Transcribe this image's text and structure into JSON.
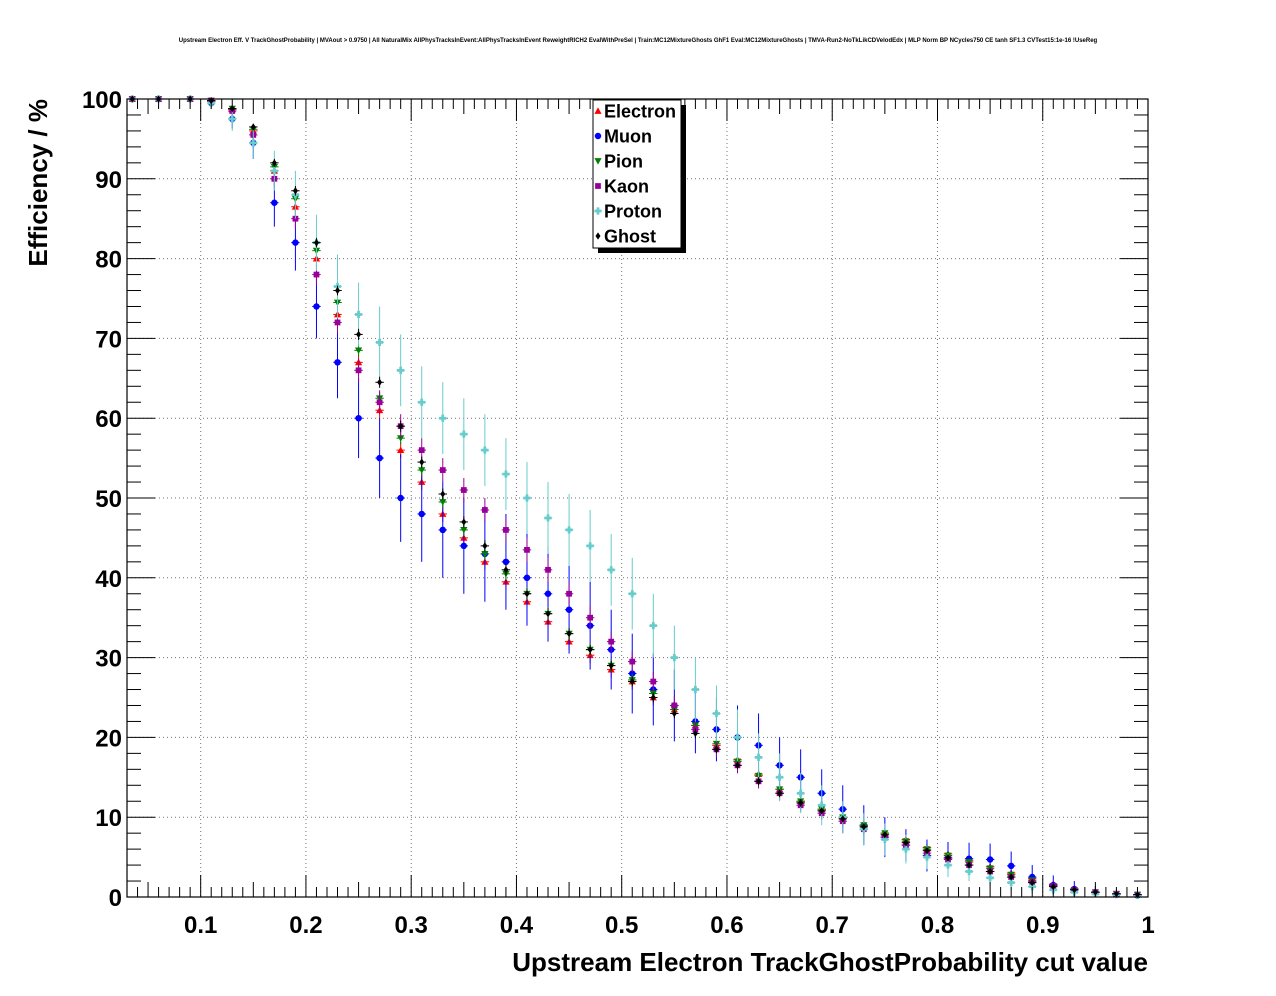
{
  "chart_data": {
    "type": "scatter",
    "title": "Upstream Electron Eff. V TrackGhostProbability | MVAout > 0.9750 | All NaturalMix AllPhysTracksInEvent:AllPhysTracksInEvent ReweightRICH2 EvalWithPreSel | Train:MC12MixtureGhosts GhF1 Eval:MC12MixtureGhosts | TMVA-Run2-NoTkLikCDVelodEdx | MLP Norm BP NCycles750 CE tanh SF1.3 CVTest15:1e-16 !UseReg",
    "xlabel": "Upstream Electron TrackGhostProbability cut value",
    "ylabel": "Efficiency / %",
    "xlim": [
      0.03,
      1.0
    ],
    "ylim": [
      0,
      100
    ],
    "x_ticks": [
      0.1,
      0.2,
      0.3,
      0.4,
      0.5,
      0.6,
      0.7,
      0.8,
      0.9,
      1.0
    ],
    "x_tick_labels": [
      "0.1",
      "0.2",
      "0.3",
      "0.4",
      "0.5",
      "0.6",
      "0.7",
      "0.8",
      "0.9",
      "1"
    ],
    "y_ticks": [
      0,
      10,
      20,
      30,
      40,
      50,
      60,
      70,
      80,
      90,
      100
    ],
    "y_tick_labels": [
      "0",
      "10",
      "20",
      "30",
      "40",
      "50",
      "60",
      "70",
      "80",
      "90",
      "100"
    ],
    "grid": true,
    "legend_position": "top-center",
    "series": [
      {
        "name": "Electron",
        "color": "#ff0000",
        "marker": "triangle-up",
        "x": [
          0.035,
          0.06,
          0.09,
          0.11,
          0.13,
          0.15,
          0.17,
          0.19,
          0.21,
          0.23,
          0.25,
          0.27,
          0.29,
          0.31,
          0.33,
          0.35,
          0.37,
          0.39,
          0.41,
          0.43,
          0.45,
          0.47,
          0.49,
          0.51,
          0.53,
          0.55,
          0.57,
          0.59,
          0.61,
          0.63,
          0.65,
          0.67,
          0.69,
          0.71,
          0.73,
          0.75,
          0.77,
          0.79,
          0.81,
          0.83,
          0.85,
          0.87,
          0.89,
          0.91,
          0.93,
          0.95,
          0.97,
          0.99
        ],
        "y": [
          100,
          100,
          100,
          99.7,
          98.7,
          96,
          91,
          86.5,
          80,
          73,
          67,
          61,
          56,
          52,
          48,
          45,
          42,
          39.5,
          37,
          34.5,
          32,
          30.3,
          28.5,
          27,
          25,
          23.5,
          21.5,
          19,
          17.2,
          15.4,
          13.5,
          12,
          11,
          10,
          9,
          8,
          7.2,
          6.2,
          5.4,
          4.6,
          3.8,
          3,
          2.3,
          1.6,
          1,
          0.6,
          0.4,
          0.3
        ],
        "err": [
          0.1,
          0.1,
          0.1,
          0.3,
          0.5,
          0.7,
          0.8,
          0.9,
          1,
          1,
          1,
          1,
          1,
          1,
          1,
          1,
          1,
          1,
          1,
          1,
          1,
          1,
          1,
          1,
          1,
          0.9,
          0.9,
          0.8,
          0.8,
          0.8,
          0.7,
          0.7,
          0.7,
          0.6,
          0.6,
          0.6,
          0.5,
          0.5,
          0.5,
          0.5,
          0.4,
          0.4,
          0.4,
          0.3,
          0.3,
          0.2,
          0.2,
          0.2
        ]
      },
      {
        "name": "Muon",
        "color": "#0000ff",
        "marker": "circle",
        "x": [
          0.035,
          0.06,
          0.09,
          0.11,
          0.13,
          0.15,
          0.17,
          0.19,
          0.21,
          0.23,
          0.25,
          0.27,
          0.29,
          0.31,
          0.33,
          0.35,
          0.37,
          0.39,
          0.41,
          0.43,
          0.45,
          0.47,
          0.49,
          0.51,
          0.53,
          0.55,
          0.57,
          0.59,
          0.61,
          0.63,
          0.65,
          0.67,
          0.69,
          0.71,
          0.73,
          0.75,
          0.77,
          0.79,
          0.81,
          0.83,
          0.85,
          0.87,
          0.89,
          0.91,
          0.93,
          0.95,
          0.97,
          0.99
        ],
        "y": [
          100,
          100,
          100,
          99.5,
          97.5,
          94.5,
          87,
          82,
          74,
          67,
          60,
          55,
          50,
          48,
          46,
          44,
          43,
          42,
          40,
          38,
          36,
          34,
          31,
          28,
          26,
          24,
          22,
          21,
          20,
          19,
          16.5,
          15,
          13,
          11,
          9,
          7.5,
          6.5,
          5.2,
          4.9,
          4.8,
          4.7,
          3.9,
          2.5,
          1.5,
          1.0,
          0.6,
          0.3,
          0.2
        ],
        "err": [
          0.1,
          0.1,
          0.2,
          0.5,
          1.2,
          2,
          3,
          3.5,
          4,
          4.5,
          5,
          5,
          5.5,
          6,
          6,
          6,
          6,
          6,
          6,
          6,
          5.5,
          5.5,
          5,
          5,
          4.5,
          4.5,
          4,
          4,
          4,
          4,
          3.5,
          3.5,
          3,
          3,
          2.5,
          2.5,
          2,
          2,
          2,
          2,
          2,
          1.8,
          1.5,
          1.2,
          1,
          0.8,
          0.6,
          0.5
        ]
      },
      {
        "name": "Pion",
        "color": "#008000",
        "marker": "triangle-down",
        "x": [
          0.035,
          0.06,
          0.09,
          0.11,
          0.13,
          0.15,
          0.17,
          0.19,
          0.21,
          0.23,
          0.25,
          0.27,
          0.29,
          0.31,
          0.33,
          0.35,
          0.37,
          0.39,
          0.41,
          0.43,
          0.45,
          0.47,
          0.49,
          0.51,
          0.53,
          0.55,
          0.57,
          0.59,
          0.61,
          0.63,
          0.65,
          0.67,
          0.69,
          0.71,
          0.73,
          0.75,
          0.77,
          0.79,
          0.81,
          0.83,
          0.85,
          0.87,
          0.89,
          0.91,
          0.93,
          0.95,
          0.97,
          0.99
        ],
        "y": [
          100,
          100,
          100,
          99.8,
          98.8,
          96.2,
          91.5,
          87.5,
          81,
          74.5,
          68.5,
          62.5,
          57.5,
          53.5,
          49.5,
          46,
          43,
          40.5,
          38,
          35.5,
          33,
          31,
          29,
          27.2,
          25.5,
          23.5,
          21.5,
          19.2,
          17,
          15.2,
          13.5,
          12,
          11,
          10,
          9,
          8,
          7,
          6,
          5.2,
          4.4,
          3.6,
          2.8,
          2.1,
          1.4,
          0.9,
          0.6,
          0.4,
          0.3
        ],
        "err": [
          0.1,
          0.1,
          0.1,
          0.2,
          0.3,
          0.5,
          0.6,
          0.7,
          0.7,
          0.8,
          0.8,
          0.8,
          0.8,
          0.8,
          0.8,
          0.8,
          0.8,
          0.8,
          0.8,
          0.8,
          0.8,
          0.8,
          0.8,
          0.8,
          0.7,
          0.7,
          0.7,
          0.7,
          0.6,
          0.6,
          0.6,
          0.5,
          0.5,
          0.5,
          0.5,
          0.4,
          0.4,
          0.4,
          0.4,
          0.3,
          0.3,
          0.3,
          0.3,
          0.2,
          0.2,
          0.2,
          0.2,
          0.1
        ]
      },
      {
        "name": "Kaon",
        "color": "#990099",
        "marker": "square",
        "x": [
          0.035,
          0.06,
          0.09,
          0.11,
          0.13,
          0.15,
          0.17,
          0.19,
          0.21,
          0.23,
          0.25,
          0.27,
          0.29,
          0.31,
          0.33,
          0.35,
          0.37,
          0.39,
          0.41,
          0.43,
          0.45,
          0.47,
          0.49,
          0.51,
          0.53,
          0.55,
          0.57,
          0.59,
          0.61,
          0.63,
          0.65,
          0.67,
          0.69,
          0.71,
          0.73,
          0.75,
          0.77,
          0.79,
          0.81,
          0.83,
          0.85,
          0.87,
          0.89,
          0.91,
          0.93,
          0.95,
          0.97,
          0.99
        ],
        "y": [
          100,
          100,
          100,
          99.8,
          98.5,
          95.5,
          90,
          85,
          78,
          72,
          66,
          62,
          59,
          56,
          53.5,
          51,
          48.5,
          46,
          43.5,
          41,
          38,
          35,
          32,
          29.5,
          27,
          24,
          21,
          18.5,
          16.5,
          14.5,
          13,
          11.5,
          10.5,
          9.5,
          8.5,
          7.5,
          6.5,
          5.5,
          4.7,
          4,
          3.2,
          2.5,
          1.9,
          1.4,
          0.9,
          0.6,
          0.4,
          0.3
        ],
        "err": [
          0.1,
          0.1,
          0.1,
          0.3,
          0.6,
          0.8,
          1,
          1.2,
          1.3,
          1.4,
          1.5,
          1.5,
          1.5,
          1.5,
          1.5,
          1.5,
          1.5,
          1.5,
          1.5,
          1.5,
          1.4,
          1.4,
          1.3,
          1.3,
          1.2,
          1.2,
          1.1,
          1,
          1,
          0.9,
          0.9,
          0.8,
          0.8,
          0.7,
          0.7,
          0.6,
          0.6,
          0.6,
          0.5,
          0.5,
          0.5,
          0.4,
          0.4,
          0.3,
          0.3,
          0.3,
          0.2,
          0.2
        ]
      },
      {
        "name": "Proton",
        "color": "#66cccc",
        "marker": "cross",
        "x": [
          0.035,
          0.06,
          0.09,
          0.11,
          0.13,
          0.15,
          0.17,
          0.19,
          0.21,
          0.23,
          0.25,
          0.27,
          0.29,
          0.31,
          0.33,
          0.35,
          0.37,
          0.39,
          0.41,
          0.43,
          0.45,
          0.47,
          0.49,
          0.51,
          0.53,
          0.55,
          0.57,
          0.59,
          0.61,
          0.63,
          0.65,
          0.67,
          0.69,
          0.71,
          0.73,
          0.75,
          0.77,
          0.79,
          0.81,
          0.83,
          0.85,
          0.87,
          0.89,
          0.91,
          0.93,
          0.95,
          0.97,
          0.99
        ],
        "y": [
          100,
          100,
          100,
          99.5,
          97.5,
          94.5,
          91,
          88,
          82,
          76.5,
          73,
          69.5,
          66,
          62,
          60,
          58,
          56,
          53,
          50,
          47.5,
          46,
          44,
          41,
          38,
          34,
          30,
          26,
          23,
          20,
          17.5,
          15,
          13,
          11.5,
          10,
          8.5,
          7.2,
          6,
          5,
          4,
          3.2,
          2.4,
          1.8,
          1.3,
          0.9,
          0.6,
          0.4,
          0.3,
          0.2
        ],
        "err": [
          0.2,
          0.2,
          0.3,
          0.8,
          1.5,
          2,
          2.5,
          3,
          3.5,
          4,
          4,
          4.5,
          4.5,
          4.5,
          4.5,
          4.5,
          4.5,
          4.5,
          4.5,
          4.5,
          4.5,
          4.5,
          4.5,
          4.5,
          4,
          4,
          4,
          3.5,
          3.5,
          3,
          3,
          2.5,
          2.5,
          2,
          2,
          2,
          1.8,
          1.5,
          1.5,
          1.2,
          1,
          1,
          0.8,
          0.6,
          0.5,
          0.4,
          0.3,
          0.3
        ]
      },
      {
        "name": "Ghost",
        "color": "#000000",
        "marker": "diamond",
        "x": [
          0.035,
          0.06,
          0.09,
          0.11,
          0.13,
          0.15,
          0.17,
          0.19,
          0.21,
          0.23,
          0.25,
          0.27,
          0.29,
          0.31,
          0.33,
          0.35,
          0.37,
          0.39,
          0.41,
          0.43,
          0.45,
          0.47,
          0.49,
          0.51,
          0.53,
          0.55,
          0.57,
          0.59,
          0.61,
          0.63,
          0.65,
          0.67,
          0.69,
          0.71,
          0.73,
          0.75,
          0.77,
          0.79,
          0.81,
          0.83,
          0.85,
          0.87,
          0.89,
          0.91,
          0.93,
          0.95,
          0.97,
          0.99
        ],
        "y": [
          100,
          100,
          100,
          99.8,
          98.8,
          96.5,
          92,
          88.5,
          82,
          76,
          70.5,
          64.5,
          59,
          54.5,
          50.5,
          47,
          44,
          41,
          38,
          35.5,
          33,
          31,
          29,
          27,
          25,
          23,
          20.5,
          18.5,
          16.5,
          14.5,
          13,
          11.8,
          10.8,
          9.8,
          8.8,
          7.8,
          6.8,
          5.8,
          4.9,
          4,
          3.2,
          2.5,
          1.8,
          1.3,
          0.9,
          0.6,
          0.4,
          0.3
        ],
        "err": [
          0.1,
          0.1,
          0.1,
          0.2,
          0.3,
          0.4,
          0.5,
          0.6,
          0.6,
          0.6,
          0.7,
          0.7,
          0.7,
          0.7,
          0.7,
          0.7,
          0.7,
          0.7,
          0.7,
          0.7,
          0.7,
          0.6,
          0.6,
          0.6,
          0.6,
          0.6,
          0.6,
          0.5,
          0.5,
          0.5,
          0.5,
          0.5,
          0.4,
          0.4,
          0.4,
          0.4,
          0.4,
          0.3,
          0.3,
          0.3,
          0.3,
          0.3,
          0.2,
          0.2,
          0.2,
          0.2,
          0.1,
          0.1
        ]
      }
    ]
  }
}
